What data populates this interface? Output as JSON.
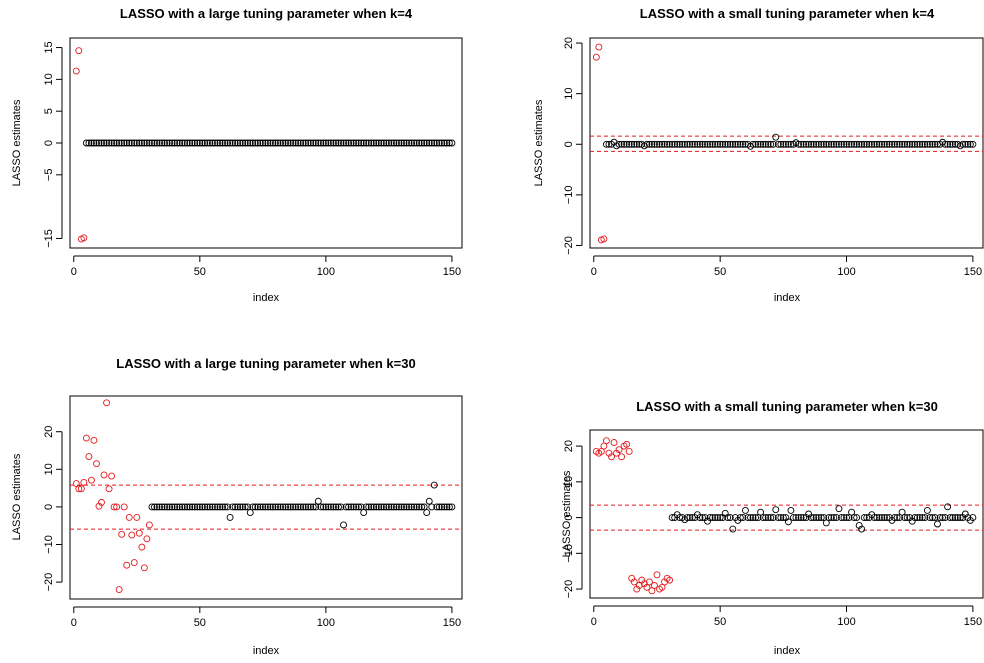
{
  "colors": {
    "zero_points": "#000000",
    "signal_points": "#e41a1c",
    "threshold_line": "#e41a1c",
    "frame": "#000000"
  },
  "chart_data": [
    {
      "type": "scatter",
      "title": "LASSO with a large tuning parameter when k=4",
      "xlabel": "index",
      "ylabel": "LASSO estimates",
      "xlim": [
        -1.5,
        154
      ],
      "ylim": [
        -16.5,
        16.5
      ],
      "xticks": [
        0,
        50,
        100,
        150
      ],
      "yticks": [
        -15,
        -5,
        0,
        5,
        10,
        15
      ],
      "grid": false,
      "threshold_lines": [],
      "signal_count": 4,
      "signal_values": [
        11.3,
        14.5,
        -15.1,
        -14.9
      ],
      "nonzero": []
    },
    {
      "type": "scatter",
      "title": "LASSO with a small tuning parameter when k=4",
      "xlabel": "index",
      "ylabel": "LASSO estimates",
      "xlim": [
        -1.5,
        154
      ],
      "ylim": [
        -20.5,
        21
      ],
      "xticks": [
        0,
        50,
        100,
        150
      ],
      "yticks": [
        -20,
        -10,
        0,
        10,
        20
      ],
      "grid": false,
      "threshold_lines": [
        1.6,
        -1.4
      ],
      "signal_count": 4,
      "signal_values": [
        17.2,
        19.2,
        -18.9,
        -18.7
      ],
      "nonzero": [
        [
          8,
          0.4
        ],
        [
          9,
          -0.3
        ],
        [
          20,
          -0.3
        ],
        [
          62,
          -0.4
        ],
        [
          72,
          1.4
        ],
        [
          80,
          0.3
        ],
        [
          138,
          0.4
        ],
        [
          145,
          -0.3
        ]
      ]
    },
    {
      "type": "scatter",
      "title": "LASSO with a large tuning parameter when k=30",
      "xlabel": "index",
      "ylabel": "LASSO estimates",
      "xlim": [
        -1.5,
        154
      ],
      "ylim": [
        -24.5,
        29.5
      ],
      "xticks": [
        0,
        50,
        100,
        150
      ],
      "yticks": [
        -20,
        -10,
        0,
        10,
        20
      ],
      "grid": false,
      "threshold_lines": [
        5.8,
        -5.9
      ],
      "signal_count": 30,
      "signal_values": [
        6.2,
        4.8,
        4.8,
        6.5,
        18.3,
        13.4,
        7.1,
        17.7,
        11.5,
        0.2,
        1.2,
        8.5,
        27.7,
        4.8,
        8.2,
        0.0,
        0.0,
        -22.0,
        -7.3,
        0.0,
        -15.5,
        -2.8,
        -7.5,
        -14.8,
        -2.8,
        -7.0,
        -10.7,
        -16.2,
        -8.5,
        -4.8
      ],
      "nonzero": [
        [
          62,
          -2.8
        ],
        [
          70,
          -1.5
        ],
        [
          97,
          1.5
        ],
        [
          107,
          -4.8
        ],
        [
          115,
          -1.5
        ],
        [
          140,
          -1.5
        ],
        [
          141,
          1.5
        ],
        [
          143,
          5.8
        ]
      ]
    },
    {
      "type": "scatter",
      "title": "LASSO with a small tuning parameter when k=30",
      "xlabel": "index",
      "ylabel": "LASSO estimates",
      "xlim": [
        -1.5,
        154
      ],
      "ylim": [
        -22.5,
        24.5
      ],
      "xticks": [
        0,
        50,
        100,
        150
      ],
      "yticks": [
        -20,
        -10,
        0,
        10,
        20
      ],
      "grid": false,
      "threshold_lines": [
        3.5,
        -3.5
      ],
      "signal_count": 30,
      "signal_values": [
        18.5,
        18.0,
        18.5,
        20.0,
        21.5,
        18.0,
        17.0,
        21.0,
        18.0,
        19.0,
        17.0,
        20.0,
        20.5,
        18.5,
        -17.0,
        -18.0,
        -20.0,
        -19.0,
        -17.5,
        -18.5,
        -19.5,
        -18.0,
        -20.5,
        -19.0,
        -16.0,
        -20.0,
        -19.5,
        -18.0,
        -17.0,
        -17.5
      ],
      "nonzero": [
        [
          33,
          0.8
        ],
        [
          36,
          -0.6
        ],
        [
          41,
          0.8
        ],
        [
          45,
          -1.0
        ],
        [
          52,
          1.2
        ],
        [
          55,
          -3.2
        ],
        [
          57,
          -0.8
        ],
        [
          60,
          2.0
        ],
        [
          66,
          1.5
        ],
        [
          72,
          2.2
        ],
        [
          77,
          -1.2
        ],
        [
          78,
          2.0
        ],
        [
          85,
          1.0
        ],
        [
          92,
          -1.5
        ],
        [
          97,
          2.5
        ],
        [
          102,
          1.5
        ],
        [
          105,
          -2.2
        ],
        [
          106,
          -3.2
        ],
        [
          110,
          0.8
        ],
        [
          118,
          -0.8
        ],
        [
          122,
          1.5
        ],
        [
          126,
          -1.0
        ],
        [
          132,
          2.0
        ],
        [
          136,
          -1.8
        ],
        [
          140,
          3.0
        ],
        [
          147,
          1.0
        ],
        [
          149,
          -0.8
        ]
      ]
    }
  ]
}
